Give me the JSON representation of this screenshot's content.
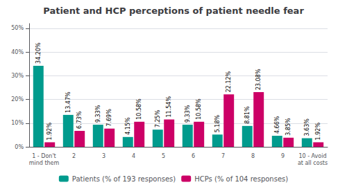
{
  "chart_data": {
    "type": "bar",
    "title": "Patient and HCP perceptions of patient needle fear",
    "categories": [
      "1 - Don't\nmind them",
      "2",
      "3",
      "4",
      "5",
      "6",
      "7",
      "8",
      "9",
      "10 - Avoid\nat all costs"
    ],
    "series": [
      {
        "name": "Patients (% of 193 responses)",
        "color": "#009B8D",
        "values": [
          34.2,
          13.47,
          9.33,
          4.15,
          7.25,
          9.33,
          5.18,
          8.81,
          4.66,
          3.63
        ],
        "value_labels": [
          "34.20%",
          "13.47%",
          "9.33%",
          "4.15%",
          "7.25%",
          "9.33%",
          "5.18%",
          "8.81%",
          "4.66%",
          "3.63%"
        ]
      },
      {
        "name": "HCPs (% of 104 responses)",
        "color": "#CC0066",
        "values": [
          1.92,
          6.73,
          7.69,
          10.58,
          11.54,
          10.58,
          22.12,
          23.08,
          3.85,
          1.92
        ],
        "value_labels": [
          "1.92%",
          "6.73%",
          "7.69%",
          "10.58%",
          "11.54%",
          "10.58%",
          "22.12%",
          "23.08%",
          "3.85%",
          "1.92%"
        ]
      }
    ],
    "ylim": [
      0,
      52
    ],
    "yticks": [
      {
        "value": 0,
        "label": "0%"
      },
      {
        "value": 10,
        "label": "10%"
      },
      {
        "value": 20,
        "label": "20%"
      },
      {
        "value": 30,
        "label": "30%"
      },
      {
        "value": 40,
        "label": "40%"
      },
      {
        "value": 50,
        "label": "50%"
      }
    ],
    "grid": true,
    "legend": "bottom",
    "data_labels": true
  }
}
